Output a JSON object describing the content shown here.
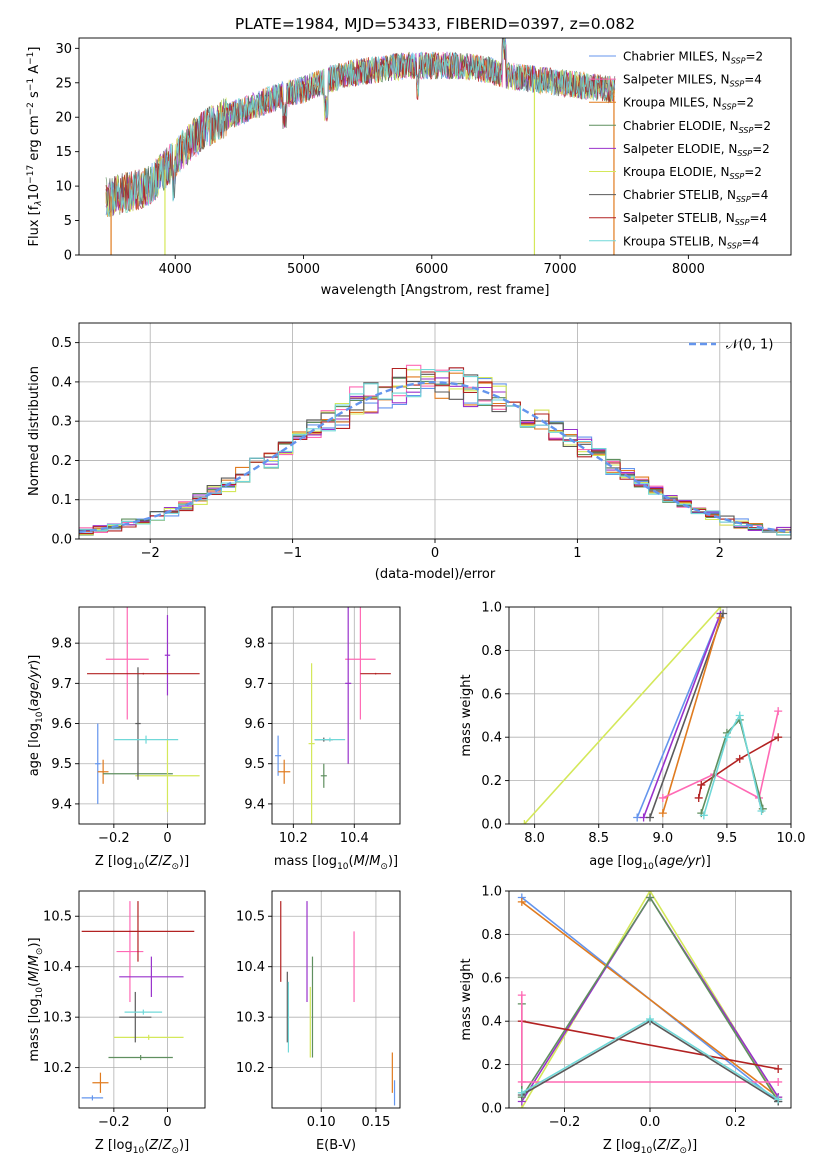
{
  "figure": {
    "title": "PLATE=1984, MJD=53433, FIBERID=0397, z=0.082"
  },
  "colors": {
    "Chabrier MILES": "#6495ed",
    "Salpeter MILES": "#ff69b4",
    "Kroupa MILES": "#e07b1f",
    "Chabrier ELODIE": "#5f8f5f",
    "Salpeter ELODIE": "#9932cc",
    "Kroupa ELODIE": "#d4e85a",
    "Chabrier STELIB": "#5a5a5a",
    "Salpeter STELIB": "#b22222",
    "Kroupa STELIB": "#70d8d8"
  },
  "chart_data": [
    {
      "id": "spectrum",
      "type": "line",
      "xlabel": "wavelength [Angstrom, rest frame]",
      "ylabel": "Flux [f",
      "ylabel_parts": [
        "Flux [f",
        "λ",
        "10",
        "−17",
        " erg cm",
        "−2",
        " s",
        "−1",
        " A",
        "−1",
        "]"
      ],
      "xlim": [
        3250,
        8800
      ],
      "ylim": [
        0,
        31.5
      ],
      "xticks": [
        4000,
        5000,
        6000,
        7000,
        8000
      ],
      "yticks": [
        0,
        5,
        10,
        15,
        20,
        25,
        30
      ],
      "grid": false,
      "legend_position": "right",
      "continuum": [
        [
          3400,
          8
        ],
        [
          3600,
          9
        ],
        [
          3800,
          10
        ],
        [
          3950,
          13
        ],
        [
          4050,
          15
        ],
        [
          4200,
          18
        ],
        [
          4400,
          20
        ],
        [
          4600,
          21.5
        ],
        [
          4800,
          23
        ],
        [
          5000,
          24
        ],
        [
          5200,
          25.5
        ],
        [
          5400,
          26.5
        ],
        [
          5600,
          27
        ],
        [
          5800,
          27.5
        ],
        [
          6000,
          27.5
        ],
        [
          6200,
          27.5
        ],
        [
          6400,
          27
        ],
        [
          6600,
          26
        ],
        [
          6800,
          25.5
        ],
        [
          7000,
          25
        ],
        [
          7200,
          24.5
        ],
        [
          7400,
          24
        ]
      ],
      "dips": [
        [
          3500,
          0
        ],
        [
          3920,
          0
        ],
        [
          6800,
          0
        ],
        [
          7420,
          0
        ]
      ],
      "series": [
        {
          "name": "Chabrier MILES, N",
          "sub": "SSP",
          "suffix": "=2",
          "key": "Chabrier MILES",
          "seed": 11
        },
        {
          "name": "Salpeter MILES, N",
          "sub": "SSP",
          "suffix": "=4",
          "key": "Salpeter MILES",
          "seed": 23
        },
        {
          "name": "Kroupa MILES, N",
          "sub": "SSP",
          "suffix": "=2",
          "key": "Kroupa MILES",
          "seed": 37
        },
        {
          "name": "Chabrier ELODIE, N",
          "sub": "SSP",
          "suffix": "=2",
          "key": "Chabrier ELODIE",
          "seed": 41
        },
        {
          "name": "Salpeter ELODIE, N",
          "sub": "SSP",
          "suffix": "=2",
          "key": "Salpeter ELODIE",
          "seed": 53
        },
        {
          "name": "Kroupa ELODIE, N",
          "sub": "SSP",
          "suffix": "=2",
          "key": "Kroupa ELODIE",
          "seed": 67
        },
        {
          "name": "Chabrier STELIB, N",
          "sub": "SSP",
          "suffix": "=4",
          "key": "Chabrier STELIB",
          "seed": 71
        },
        {
          "name": "Salpeter STELIB, N",
          "sub": "SSP",
          "suffix": "=4",
          "key": "Salpeter STELIB",
          "seed": 83
        },
        {
          "name": "Kroupa STELIB, N",
          "sub": "SSP",
          "suffix": "=4",
          "key": "Kroupa STELIB",
          "seed": 97
        }
      ]
    },
    {
      "id": "residuals",
      "type": "line",
      "xlabel": "(data-model)/error",
      "ylabel": "Normed distribution",
      "xlim": [
        -2.5,
        2.5
      ],
      "ylim": [
        0,
        0.55
      ],
      "xticks": [
        -2,
        -1,
        0,
        1,
        2
      ],
      "yticks": [
        0.0,
        0.1,
        0.2,
        0.3,
        0.4,
        0.5
      ],
      "grid": true,
      "legend_position": "top-right",
      "legend_label": "𝒩(0, 1)",
      "legend_color": "#6495ed",
      "bin_width": 0.1
    },
    {
      "id": "age-vs-Z",
      "type": "scatter",
      "xlabel": "Z [log",
      "ylabel": "age  [log",
      "xlim": [
        -0.33,
        0.14
      ],
      "ylim": [
        9.35,
        9.89
      ],
      "xticks": [
        -0.2,
        0.0
      ],
      "yticks": [
        9.4,
        9.5,
        9.6,
        9.7,
        9.8
      ],
      "grid": true,
      "points": [
        {
          "key": "Chabrier MILES",
          "x": -0.26,
          "xerr": 0.01,
          "y": 9.5,
          "yerr": 0.1
        },
        {
          "key": "Salpeter MILES",
          "x": -0.15,
          "xerr": 0.08,
          "y": 9.76,
          "yerr": 0.15
        },
        {
          "key": "Kroupa MILES",
          "x": -0.24,
          "xerr": 0.02,
          "y": 9.48,
          "yerr": 0.03
        },
        {
          "key": "Chabrier ELODIE",
          "x": -0.11,
          "xerr": 0.13,
          "y": 9.475,
          "yerr": 0.005
        },
        {
          "key": "Salpeter ELODIE",
          "x": 0.0,
          "xerr": 0.01,
          "y": 9.77,
          "yerr": 0.1
        },
        {
          "key": "Kroupa ELODIE",
          "x": 0.0,
          "xerr": 0.12,
          "y": 9.47,
          "yerr": 0.09
        },
        {
          "key": "Chabrier STELIB",
          "x": -0.11,
          "xerr": 0.01,
          "y": 9.6,
          "yerr": 0.14
        },
        {
          "key": "Salpeter STELIB",
          "x": -0.09,
          "xerr": 0.21,
          "y": 9.724,
          "yerr": 0.002
        },
        {
          "key": "Kroupa STELIB",
          "x": -0.08,
          "xerr": 0.12,
          "y": 9.56,
          "yerr": 0.01
        }
      ]
    },
    {
      "id": "age-vs-mass",
      "type": "scatter",
      "xlabel": "mass [log",
      "ylabel": "",
      "xlim": [
        10.13,
        10.55
      ],
      "ylim": [
        9.35,
        9.89
      ],
      "xticks": [
        10.2,
        10.4
      ],
      "yticks": [
        9.4,
        9.5,
        9.6,
        9.7,
        9.8
      ],
      "grid": true,
      "points": [
        {
          "key": "Chabrier MILES",
          "x": 10.15,
          "xerr": 0.01,
          "y": 9.52,
          "yerr": 0.05
        },
        {
          "key": "Salpeter MILES",
          "x": 10.42,
          "xerr": 0.05,
          "y": 9.76,
          "yerr": 0.15
        },
        {
          "key": "Kroupa MILES",
          "x": 10.17,
          "xerr": 0.02,
          "y": 9.48,
          "yerr": 0.03
        },
        {
          "key": "Chabrier ELODIE",
          "x": 10.3,
          "xerr": 0.01,
          "y": 9.47,
          "yerr": 0.03
        },
        {
          "key": "Salpeter ELODIE",
          "x": 10.38,
          "xerr": 0.01,
          "y": 9.7,
          "yerr": 0.2
        },
        {
          "key": "Kroupa ELODIE",
          "x": 10.26,
          "xerr": 0.01,
          "y": 9.55,
          "yerr": 0.2
        },
        {
          "key": "Chabrier STELIB",
          "x": 10.3,
          "xerr": 0.03,
          "y": 9.56,
          "yerr": 0.005
        },
        {
          "key": "Salpeter STELIB",
          "x": 10.47,
          "xerr": 0.05,
          "y": 9.724,
          "yerr": 0.002
        },
        {
          "key": "Kroupa STELIB",
          "x": 10.32,
          "xerr": 0.05,
          "y": 9.56,
          "yerr": 0.005
        }
      ]
    },
    {
      "id": "weight-vs-age",
      "type": "line",
      "xlabel": "age  [log",
      "ylabel": "mass weight",
      "xlim": [
        7.8,
        10.0
      ],
      "ylim": [
        0,
        1.0
      ],
      "xticks": [
        8.0,
        8.5,
        9.0,
        9.5,
        10.0
      ],
      "xtick_labels": [
        "8.0",
        "8.5",
        "9.0",
        "9.5",
        "10.0"
      ],
      "yticks": [
        0.0,
        0.2,
        0.4,
        0.6,
        0.8,
        1.0
      ],
      "grid": true,
      "series": [
        {
          "key": "Chabrier MILES",
          "points": [
            [
              8.8,
              0.03
            ],
            [
              9.45,
              0.97
            ]
          ]
        },
        {
          "key": "Salpeter ELODIE",
          "points": [
            [
              8.85,
              0.03
            ],
            [
              9.45,
              0.97
            ]
          ]
        },
        {
          "key": "Chabrier STELIB",
          "points": [
            [
              8.9,
              0.03
            ],
            [
              9.47,
              0.97
            ]
          ]
        },
        {
          "key": "Kroupa MILES",
          "points": [
            [
              9.0,
              0.05
            ],
            [
              9.45,
              0.95
            ]
          ]
        },
        {
          "key": "Kroupa ELODIE",
          "points": [
            [
              7.92,
              0.0
            ],
            [
              9.45,
              1.0
            ]
          ]
        },
        {
          "key": "Salpeter MILES",
          "points": [
            [
              9.0,
              0.12
            ],
            [
              9.4,
              0.23
            ],
            [
              9.75,
              0.12
            ],
            [
              9.9,
              0.52
            ]
          ]
        },
        {
          "key": "Salpeter STELIB",
          "points": [
            [
              9.28,
              0.12
            ],
            [
              9.3,
              0.18
            ],
            [
              9.6,
              0.3
            ],
            [
              9.9,
              0.4
            ]
          ]
        },
        {
          "key": "Chabrier ELODIE",
          "points": [
            [
              9.3,
              0.05
            ],
            [
              9.5,
              0.42
            ],
            [
              9.6,
              0.48
            ],
            [
              9.78,
              0.07
            ]
          ]
        },
        {
          "key": "Kroupa STELIB",
          "points": [
            [
              9.32,
              0.04
            ],
            [
              9.5,
              0.4
            ],
            [
              9.6,
              0.5
            ],
            [
              9.77,
              0.06
            ]
          ]
        }
      ]
    },
    {
      "id": "mass-vs-Z",
      "type": "scatter",
      "xlabel": "Z [log",
      "ylabel": "mass [log",
      "xlim": [
        -0.33,
        0.14
      ],
      "ylim": [
        10.12,
        10.55
      ],
      "xticks": [
        -0.2,
        0.0
      ],
      "yticks": [
        10.2,
        10.3,
        10.4,
        10.5
      ],
      "grid": true,
      "points": [
        {
          "key": "Chabrier MILES",
          "x": -0.28,
          "xerr": 0.04,
          "y": 10.14,
          "yerr": 0.005
        },
        {
          "key": "Salpeter MILES",
          "x": -0.14,
          "xerr": 0.05,
          "y": 10.43,
          "yerr": 0.1
        },
        {
          "key": "Kroupa MILES",
          "x": -0.25,
          "xerr": 0.03,
          "y": 10.17,
          "yerr": 0.02
        },
        {
          "key": "Chabrier ELODIE",
          "x": -0.1,
          "xerr": 0.12,
          "y": 10.22,
          "yerr": 0.005
        },
        {
          "key": "Salpeter ELODIE",
          "x": -0.06,
          "xerr": 0.12,
          "y": 10.38,
          "yerr": 0.04
        },
        {
          "key": "Kroupa ELODIE",
          "x": -0.07,
          "xerr": 0.13,
          "y": 10.26,
          "yerr": 0.005
        },
        {
          "key": "Chabrier STELIB",
          "x": -0.12,
          "xerr": 0.06,
          "y": 10.3,
          "yerr": 0.05
        },
        {
          "key": "Salpeter STELIB",
          "x": -0.11,
          "xerr": 0.21,
          "y": 10.47,
          "yerr": 0.06
        },
        {
          "key": "Kroupa STELIB",
          "x": -0.09,
          "xerr": 0.07,
          "y": 10.31,
          "yerr": 0.005
        }
      ]
    },
    {
      "id": "mass-vs-ebv",
      "type": "scatter",
      "xlabel": "E(B-V)",
      "ylabel": "",
      "xlim": [
        0.055,
        0.172
      ],
      "ylim": [
        10.12,
        10.55
      ],
      "xticks": [
        0.1,
        0.15
      ],
      "xtick_labels": [
        "0.10",
        "0.15"
      ],
      "yticks": [
        10.2,
        10.3,
        10.4,
        10.5
      ],
      "grid": true,
      "points": [
        {
          "key": "Chabrier MILES",
          "x": 0.167,
          "xerr": 0,
          "y": 10.15,
          "yerr": 0.025
        },
        {
          "key": "Salpeter MILES",
          "x": 0.13,
          "xerr": 0,
          "y": 10.4,
          "yerr": 0.07
        },
        {
          "key": "Kroupa MILES",
          "x": 0.165,
          "xerr": 0,
          "y": 10.19,
          "yerr": 0.04
        },
        {
          "key": "Chabrier ELODIE",
          "x": 0.092,
          "xerr": 0,
          "y": 10.32,
          "yerr": 0.1
        },
        {
          "key": "Salpeter ELODIE",
          "x": 0.087,
          "xerr": 0,
          "y": 10.43,
          "yerr": 0.1
        },
        {
          "key": "Kroupa ELODIE",
          "x": 0.09,
          "xerr": 0,
          "y": 10.29,
          "yerr": 0.07
        },
        {
          "key": "Chabrier STELIB",
          "x": 0.069,
          "xerr": 0,
          "y": 10.32,
          "yerr": 0.07
        },
        {
          "key": "Salpeter STELIB",
          "x": 0.063,
          "xerr": 0,
          "y": 10.45,
          "yerr": 0.08
        },
        {
          "key": "Kroupa STELIB",
          "x": 0.07,
          "xerr": 0,
          "y": 10.3,
          "yerr": 0.07
        }
      ]
    },
    {
      "id": "weight-vs-Z",
      "type": "line",
      "xlabel": "Z [log",
      "ylabel": "mass weight",
      "xlim": [
        -0.33,
        0.33
      ],
      "ylim": [
        0,
        1.0
      ],
      "xticks": [
        -0.2,
        0.0,
        0.2
      ],
      "xtick_labels": [
        "−0.2",
        "0.0",
        "0.2"
      ],
      "yticks": [
        0.0,
        0.2,
        0.4,
        0.6,
        0.8,
        1.0
      ],
      "grid": true,
      "series": [
        {
          "key": "Chabrier MILES",
          "points": [
            [
              -0.3,
              0.97
            ],
            [
              0.3,
              0.03
            ]
          ]
        },
        {
          "key": "Kroupa MILES",
          "points": [
            [
              -0.3,
              0.95
            ],
            [
              0.3,
              0.05
            ]
          ]
        },
        {
          "key": "Kroupa ELODIE",
          "points": [
            [
              -0.3,
              0.0
            ],
            [
              0.0,
              1.0
            ],
            [
              0.3,
              0.04
            ]
          ]
        },
        {
          "key": "Salpeter ELODIE",
          "points": [
            [
              -0.3,
              0.03
            ],
            [
              0.0,
              0.97
            ],
            [
              0.3,
              0.05
            ]
          ]
        },
        {
          "key": "Chabrier ELODIE",
          "points": [
            [
              -0.3,
              0.48
            ],
            [
              -0.3,
              0.05
            ],
            [
              0.0,
              0.97
            ],
            [
              0.3,
              0.03
            ]
          ]
        },
        {
          "key": "Salpeter STELIB",
          "points": [
            [
              -0.3,
              0.4
            ],
            [
              0.3,
              0.18
            ]
          ]
        },
        {
          "key": "Salpeter MILES",
          "points": [
            [
              -0.3,
              0.52
            ],
            [
              -0.3,
              0.12
            ],
            [
              0.3,
              0.12
            ]
          ]
        },
        {
          "key": "Chabrier STELIB",
          "points": [
            [
              -0.3,
              0.06
            ],
            [
              0.0,
              0.4
            ],
            [
              0.3,
              0.03
            ]
          ]
        },
        {
          "key": "Kroupa STELIB",
          "points": [
            [
              -0.3,
              0.07
            ],
            [
              0.0,
              0.41
            ],
            [
              0.3,
              0.04
            ]
          ]
        }
      ]
    }
  ]
}
